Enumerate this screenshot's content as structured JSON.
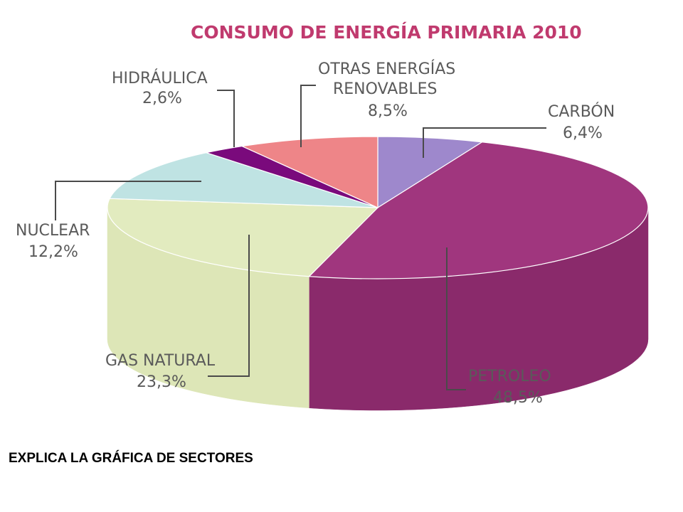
{
  "chart_data": {
    "type": "pie",
    "title": "CONSUMO DE ENERGÍA PRIMARIA 2010",
    "slices": [
      {
        "label": "CARBÓN",
        "value_label": "6,4%",
        "value": 6.4,
        "color": "#9e88cc",
        "side": "#7d6aa8"
      },
      {
        "label": "PETROLEO",
        "value_label": "48,5%",
        "value": 48.5,
        "color": "#a0367e",
        "side": "#8a2a6b"
      },
      {
        "label": "GAS NATURAL",
        "value_label": "23,3%",
        "value": 23.3,
        "color": "#e2ebbf",
        "side": "#dde6b7"
      },
      {
        "label": "NUCLEAR",
        "value_label": "12,2%",
        "value": 12.2,
        "color": "#bfe3e3",
        "side": "#a9cfcf"
      },
      {
        "label": "HIDRÁULICA",
        "value_label": "2,6%",
        "value": 2.6,
        "color": "#7a0a7c",
        "side": "#5e065f"
      },
      {
        "label": "OTRAS ENERGÍAS RENOVABLES",
        "value_label": "8,5%",
        "value": 8.5,
        "color": "#ee8588",
        "side": "#d06a6d"
      }
    ]
  },
  "labels": {
    "hidraulica": {
      "line1": "HIDRÁULICA",
      "line2": "2,6%"
    },
    "otras": {
      "line1": "OTRAS ENERGÍAS",
      "line2": "RENOVABLES",
      "line3": "8,5%"
    },
    "carbon": {
      "line1": "CARBÓN",
      "line2": "6,4%"
    },
    "nuclear": {
      "line1": "NUCLEAR",
      "line2": "12,2%"
    },
    "gas": {
      "line1": "GAS NATURAL",
      "line2": "23,3%"
    },
    "petroleo": {
      "line1": "PETROLEO",
      "line2": "48,5%"
    }
  },
  "caption": "EXPLICA LA GRÁFICA DE SECTORES"
}
